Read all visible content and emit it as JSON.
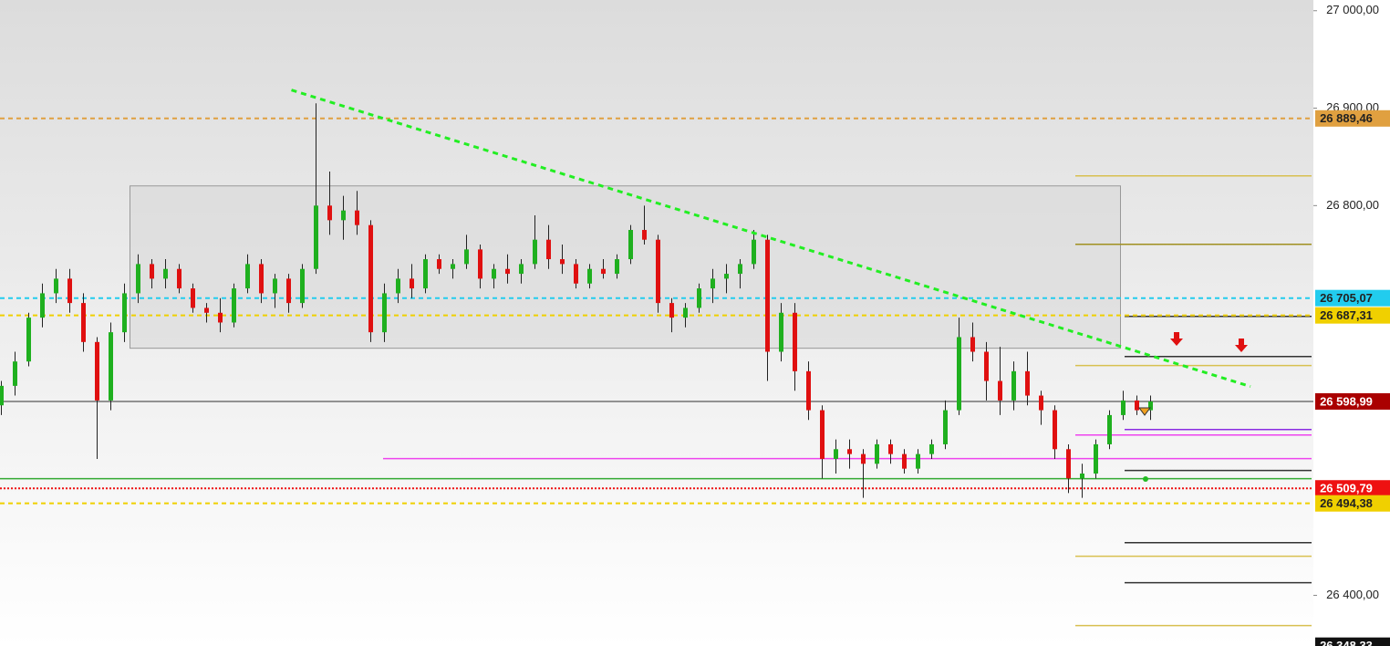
{
  "chart_data": {
    "type": "candlestick",
    "up_color": "#1fb01f",
    "down_color": "#e01010",
    "xlim": [
      -0.1,
      95.9
    ],
    "ylim": [
      26348,
      27011
    ],
    "grid": false,
    "yticks": [
      {
        "value": 27000,
        "label": "27 000,00"
      },
      {
        "value": 26900,
        "label": "26 900,00"
      },
      {
        "value": 26800,
        "label": "26 800,00"
      },
      {
        "value": 26400,
        "label": "26 400,00"
      }
    ],
    "ohlc": [
      [
        26595,
        26620,
        26585,
        26615
      ],
      [
        26615,
        26650,
        26605,
        26640
      ],
      [
        26640,
        26690,
        26635,
        26685
      ],
      [
        26685,
        26720,
        26675,
        26710
      ],
      [
        26710,
        26735,
        26700,
        26725
      ],
      [
        26725,
        26735,
        26690,
        26700
      ],
      [
        26700,
        26710,
        26650,
        26660
      ],
      [
        26660,
        26665,
        26540,
        26600
      ],
      [
        26600,
        26680,
        26590,
        26670
      ],
      [
        26670,
        26720,
        26660,
        26710
      ],
      [
        26710,
        26750,
        26700,
        26740
      ],
      [
        26740,
        26745,
        26715,
        26725
      ],
      [
        26725,
        26745,
        26715,
        26735
      ],
      [
        26735,
        26740,
        26710,
        26715
      ],
      [
        26715,
        26720,
        26690,
        26695
      ],
      [
        26695,
        26700,
        26680,
        26690
      ],
      [
        26690,
        26705,
        26670,
        26680
      ],
      [
        26680,
        26720,
        26675,
        26715
      ],
      [
        26715,
        26750,
        26710,
        26740
      ],
      [
        26740,
        26745,
        26700,
        26710
      ],
      [
        26710,
        26730,
        26695,
        26725
      ],
      [
        26725,
        26730,
        26690,
        26700
      ],
      [
        26700,
        26740,
        26695,
        26735
      ],
      [
        26735,
        26905,
        26730,
        26800
      ],
      [
        26800,
        26835,
        26770,
        26785
      ],
      [
        26785,
        26810,
        26765,
        26795
      ],
      [
        26795,
        26815,
        26770,
        26780
      ],
      [
        26780,
        26785,
        26660,
        26670
      ],
      [
        26670,
        26720,
        26660,
        26710
      ],
      [
        26710,
        26735,
        26700,
        26725
      ],
      [
        26725,
        26740,
        26705,
        26715
      ],
      [
        26715,
        26750,
        26710,
        26745
      ],
      [
        26745,
        26750,
        26730,
        26735
      ],
      [
        26735,
        26745,
        26725,
        26740
      ],
      [
        26740,
        26770,
        26735,
        26755
      ],
      [
        26755,
        26760,
        26715,
        26725
      ],
      [
        26725,
        26740,
        26715,
        26735
      ],
      [
        26735,
        26750,
        26720,
        26730
      ],
      [
        26730,
        26745,
        26720,
        26740
      ],
      [
        26740,
        26790,
        26735,
        26765
      ],
      [
        26765,
        26780,
        26735,
        26745
      ],
      [
        26745,
        26760,
        26730,
        26740
      ],
      [
        26740,
        26745,
        26715,
        26720
      ],
      [
        26720,
        26740,
        26715,
        26735
      ],
      [
        26735,
        26745,
        26725,
        26730
      ],
      [
        26730,
        26750,
        26725,
        26745
      ],
      [
        26745,
        26780,
        26740,
        26775
      ],
      [
        26775,
        26800,
        26760,
        26765
      ],
      [
        26765,
        26770,
        26690,
        26700
      ],
      [
        26700,
        26705,
        26670,
        26685
      ],
      [
        26685,
        26700,
        26675,
        26695
      ],
      [
        26695,
        26720,
        26690,
        26715
      ],
      [
        26715,
        26735,
        26700,
        26725
      ],
      [
        26725,
        26740,
        26710,
        26730
      ],
      [
        26730,
        26745,
        26715,
        26740
      ],
      [
        26740,
        26775,
        26735,
        26765
      ],
      [
        26765,
        26770,
        26620,
        26650
      ],
      [
        26650,
        26700,
        26640,
        26690
      ],
      [
        26690,
        26700,
        26610,
        26630
      ],
      [
        26630,
        26640,
        26580,
        26590
      ],
      [
        26590,
        26595,
        26520,
        26540
      ],
      [
        26540,
        26560,
        26525,
        26550
      ],
      [
        26550,
        26560,
        26530,
        26545
      ],
      [
        26545,
        26550,
        26500,
        26535
      ],
      [
        26535,
        26560,
        26530,
        26555
      ],
      [
        26555,
        26560,
        26535,
        26545
      ],
      [
        26545,
        26550,
        26525,
        26530
      ],
      [
        26530,
        26550,
        26525,
        26545
      ],
      [
        26545,
        26560,
        26540,
        26555
      ],
      [
        26555,
        26600,
        26550,
        26590
      ],
      [
        26590,
        26685,
        26585,
        26665
      ],
      [
        26665,
        26680,
        26640,
        26650
      ],
      [
        26650,
        26660,
        26600,
        26620
      ],
      [
        26620,
        26655,
        26585,
        26600
      ],
      [
        26600,
        26640,
        26590,
        26630
      ],
      [
        26630,
        26650,
        26595,
        26605
      ],
      [
        26605,
        26610,
        26575,
        26590
      ],
      [
        26590,
        26595,
        26540,
        26550
      ],
      [
        26550,
        26555,
        26505,
        26520
      ],
      [
        26520,
        26535,
        26500,
        26525
      ],
      [
        26525,
        26560,
        26520,
        26555
      ],
      [
        26555,
        26590,
        26550,
        26585
      ],
      [
        26585,
        26610,
        26580,
        26600
      ],
      [
        26600,
        26605,
        26585,
        26590
      ],
      [
        26590,
        26605,
        26580,
        26599
      ]
    ],
    "box": {
      "x": [
        9.4,
        81.8
      ],
      "y": [
        26653.6,
        26820.2
      ],
      "color": "#d8d8d8"
    },
    "trendline": {
      "x": [
        21.2,
        91.3
      ],
      "y": [
        26918.6,
        26614.3
      ],
      "color": "#22ee22"
    },
    "levels": [
      {
        "value": 26830.5,
        "from": 78.5,
        "color": "#d8c050"
      },
      {
        "value": 26760.3,
        "from": 78.5,
        "color": "#a09020"
      },
      {
        "value": 26686.3,
        "from": 82.1,
        "color": "#333333"
      },
      {
        "value": 26645.1,
        "from": 82.1,
        "color": "#333333"
      },
      {
        "value": 26635.8,
        "from": 78.5,
        "color": "#d8c050"
      },
      {
        "value": 26570.2,
        "from": 82.1,
        "color": "#8a2be2"
      },
      {
        "value": 26564.6,
        "from": 78.5,
        "color": "#ee44ee"
      },
      {
        "value": 26540.3,
        "from": 27.9,
        "color": "#ee44ee"
      },
      {
        "value": 26528.1,
        "from": 82.1,
        "color": "#333333"
      },
      {
        "value": 26519.7,
        "from": -0.1,
        "color": "#33aa33"
      },
      {
        "value": 26454.1,
        "from": 82.1,
        "color": "#333333"
      },
      {
        "value": 26440.1,
        "from": 78.5,
        "color": "#d8c050"
      },
      {
        "value": 26413,
        "from": 82.1,
        "color": "#333333"
      },
      {
        "value": 26368.9,
        "from": 78.5,
        "color": "#d8c050"
      }
    ],
    "price_tags": [
      {
        "value": 26889.46,
        "label": "26 889,46",
        "color": "#e0a040",
        "text_color": "#222",
        "line": "dashed"
      },
      {
        "value": 26705.07,
        "label": "26 705,07",
        "color": "#22ccee",
        "text_color": "#222",
        "line": "dashed"
      },
      {
        "value": 26687.31,
        "label": "26 687,31",
        "color": "#f0d000",
        "text_color": "#222",
        "line": "dashed"
      },
      {
        "value": 26598.99,
        "label": "26 598,99",
        "color": "#aa0000",
        "text_color": "#fff",
        "line": "solid"
      },
      {
        "value": 26509.79,
        "label": "26 509,79",
        "color": "#ee1111",
        "text_color": "#fff",
        "line": "dotted"
      },
      {
        "value": 26494.38,
        "label": "26 494,38",
        "color": "#f0d000",
        "text_color": "#222",
        "line": "dashed"
      },
      {
        "value": 26348.33,
        "label": "26 348,33",
        "color": "#111111",
        "text_color": "#fff",
        "line": "none"
      }
    ]
  }
}
